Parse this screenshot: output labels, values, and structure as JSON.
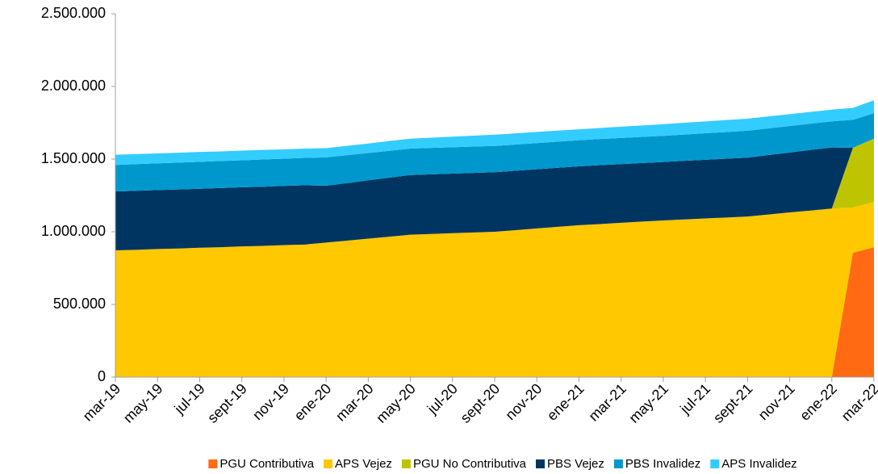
{
  "chart_data": {
    "type": "stacked_area",
    "categories": [
      "mar-19",
      null,
      "may-19",
      null,
      "jul-19",
      null,
      "sept-19",
      null,
      "nov-19",
      null,
      "ene-20",
      null,
      "mar-20",
      null,
      "may-20",
      null,
      "jul-20",
      null,
      "sept-20",
      null,
      "nov-20",
      null,
      "ene-21",
      null,
      "mar-21",
      null,
      "may-21",
      null,
      "jul-21",
      null,
      "sept-21",
      null,
      "nov-21",
      null,
      "ene-22",
      null,
      "mar-22"
    ],
    "series": [
      {
        "name": "PGU Contributiva",
        "color": "#ff6a13",
        "values": [
          0,
          0,
          0,
          0,
          0,
          0,
          0,
          0,
          0,
          0,
          0,
          0,
          0,
          0,
          0,
          0,
          0,
          0,
          0,
          0,
          0,
          0,
          0,
          0,
          0,
          0,
          0,
          0,
          0,
          0,
          0,
          0,
          0,
          0,
          0,
          855000,
          894000
        ]
      },
      {
        "name": "APS Vejez",
        "color": "#ffc800",
        "values": [
          872000,
          876000,
          881000,
          885000,
          890000,
          894000,
          899000,
          903000,
          908000,
          912000,
          926000,
          939000,
          953000,
          966000,
          980000,
          985000,
          990000,
          995000,
          1000000,
          1011000,
          1023000,
          1034000,
          1045000,
          1053000,
          1062000,
          1070000,
          1078000,
          1085000,
          1092000,
          1098000,
          1105000,
          1119000,
          1133000,
          1146000,
          1160000,
          312000,
          311000
        ]
      },
      {
        "name": "PGU No Contributiva",
        "color": "#bfc400",
        "values": [
          0,
          0,
          0,
          0,
          0,
          0,
          0,
          0,
          0,
          0,
          0,
          0,
          0,
          0,
          0,
          0,
          0,
          0,
          0,
          0,
          0,
          0,
          0,
          0,
          0,
          0,
          0,
          0,
          0,
          0,
          0,
          0,
          0,
          0,
          0,
          411000,
          435000
        ]
      },
      {
        "name": "PBS Vejez",
        "color": "#003562",
        "values": [
          405000,
          406000,
          406000,
          406000,
          406000,
          407000,
          407000,
          407000,
          407000,
          408000,
          391000,
          396000,
          401000,
          406000,
          410000,
          410000,
          410000,
          410000,
          410000,
          409000,
          407000,
          406000,
          405000,
          405000,
          403000,
          403000,
          402000,
          403000,
          403000,
          405000,
          405000,
          409000,
          412000,
          417000,
          420000,
          0,
          0
        ]
      },
      {
        "name": "PBS Invalidez",
        "color": "#0098cc",
        "values": [
          183000,
          183000,
          184000,
          185000,
          185000,
          186000,
          186000,
          187000,
          188000,
          188000,
          195000,
          192000,
          188000,
          185000,
          182000,
          182000,
          181000,
          181000,
          180000,
          180000,
          180000,
          180000,
          180000,
          180000,
          180000,
          180000,
          180000,
          181000,
          183000,
          183000,
          185000,
          183000,
          183000,
          181000,
          180000,
          192000,
          175000
        ]
      },
      {
        "name": "APS Invalidez",
        "color": "#33ccff",
        "values": [
          70000,
          70000,
          68000,
          68000,
          68000,
          66000,
          66000,
          66000,
          64000,
          64000,
          63000,
          64000,
          65000,
          67000,
          68000,
          70000,
          73000,
          75000,
          78000,
          77000,
          77000,
          76000,
          75000,
          76000,
          78000,
          78000,
          80000,
          81000,
          81000,
          83000,
          83000,
          83000,
          81000,
          81000,
          80000,
          82000,
          90000
        ]
      }
    ],
    "ylim": [
      0,
      2500000
    ],
    "yticks": [
      0,
      {
        "value": 500000,
        "label": "500.000"
      },
      {
        "value": 1000000,
        "label": "1.000.000"
      },
      {
        "value": 1500000,
        "label": "1.500.000"
      },
      {
        "value": 2000000,
        "label": "2.000.000"
      },
      {
        "value": 2500000,
        "label": "2.500.000"
      }
    ],
    "legend": "bottom"
  }
}
